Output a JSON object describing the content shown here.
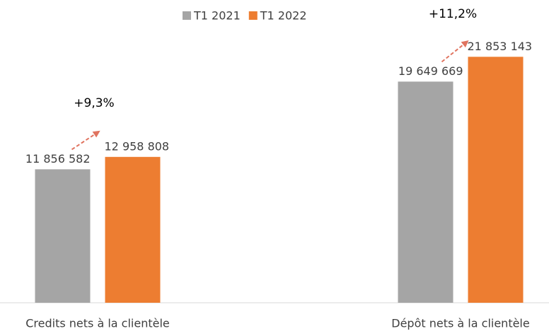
{
  "chart_data": {
    "type": "bar",
    "categories": [
      "Credits nets à la clientèle",
      "Dépôt nets à la clientèle"
    ],
    "series": [
      {
        "name": "T1 2021",
        "color": "#a5a5a5",
        "values": [
          11856582,
          19649669
        ],
        "value_labels": [
          "11 856 582",
          "19 649 669"
        ]
      },
      {
        "name": "T1 2022",
        "color": "#ed7d31",
        "values": [
          12958808,
          21853143
        ],
        "value_labels": [
          "12 958 808",
          "21 853 143"
        ]
      }
    ],
    "annotations": [
      "+9,3%",
      "+11,2%"
    ],
    "ylim": [
      0,
      26900000
    ],
    "legend": "top"
  }
}
